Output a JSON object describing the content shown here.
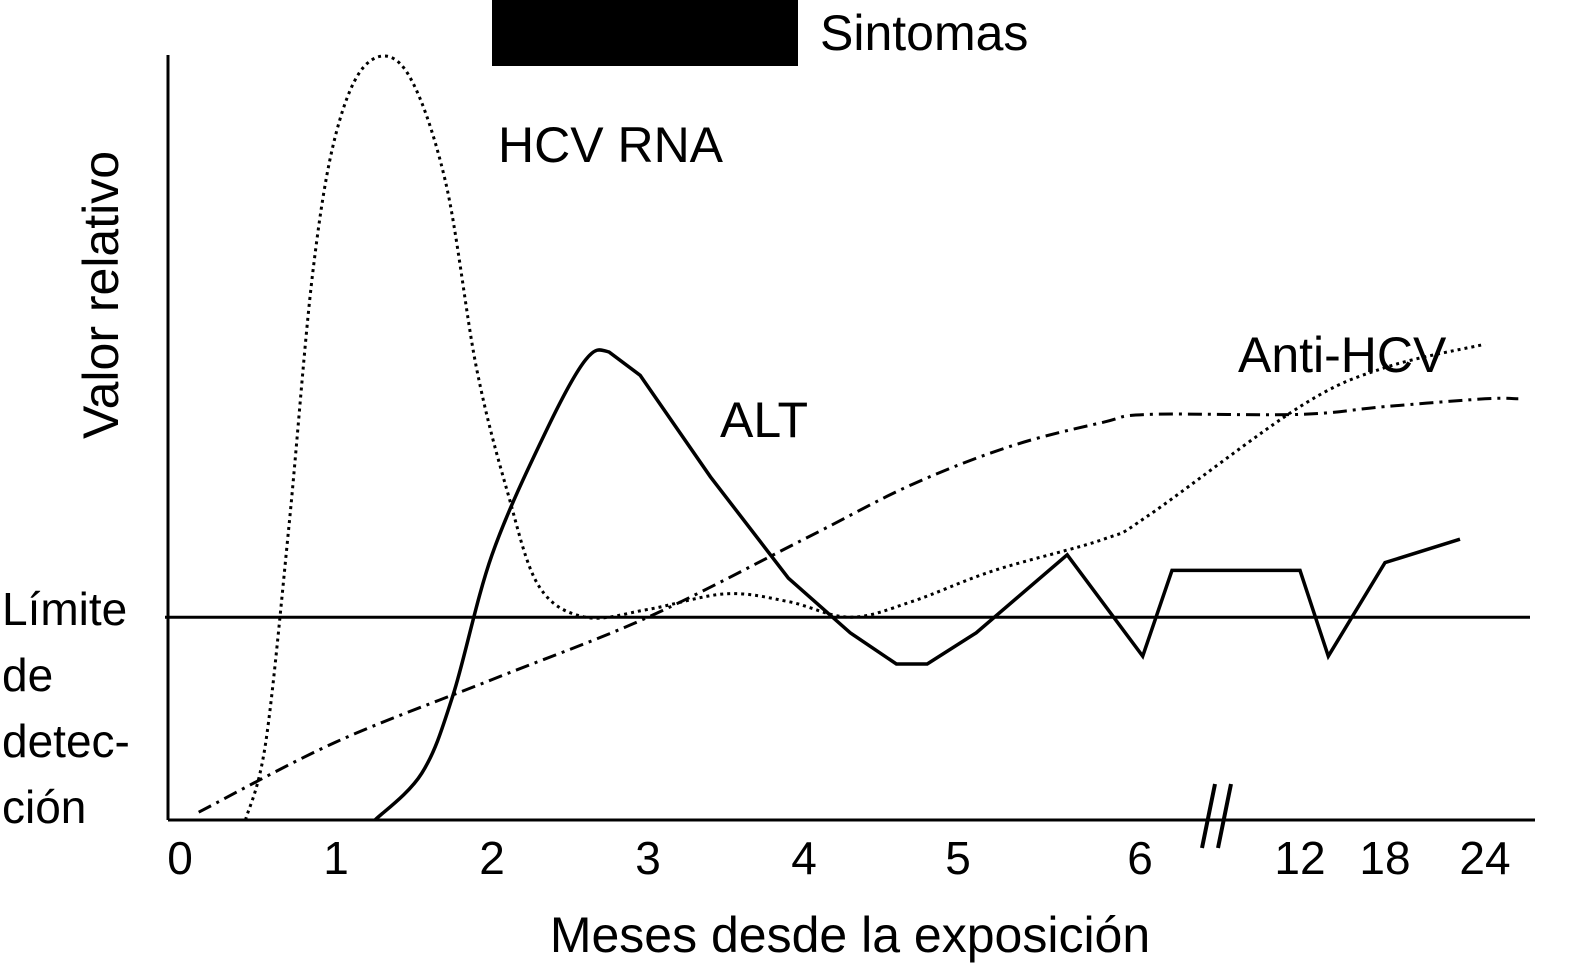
{
  "chart_data": {
    "type": "line",
    "title": "",
    "xlabel": "Meses desde la exposición",
    "ylabel": "Valor relativo",
    "x_tick_labels": [
      "0",
      "1",
      "2",
      "3",
      "4",
      "5",
      "6",
      "12",
      "18",
      "24"
    ],
    "axis_break_marker": "//",
    "y_reference": {
      "label_lines": [
        "Límite",
        "de",
        "detec-",
        "ción"
      ],
      "value": 0.26
    },
    "symptoms": {
      "label": "Sintomas",
      "start": 2.0,
      "end": 4.0
    },
    "series": [
      {
        "name": "HCV RNA",
        "style": "dotted",
        "x": [
          0.42,
          0.55,
          0.7,
          0.85,
          1.0,
          1.2,
          1.45,
          1.7,
          1.9,
          2.1,
          2.3,
          2.6,
          3.0,
          3.5,
          3.9,
          4.3,
          4.7,
          5.2,
          5.8,
          6.3,
          12,
          18,
          24
        ],
        "y": [
          0.0,
          0.1,
          0.38,
          0.7,
          0.88,
          0.97,
          0.96,
          0.82,
          0.58,
          0.42,
          0.3,
          0.26,
          0.27,
          0.29,
          0.28,
          0.26,
          0.28,
          0.32,
          0.36,
          0.39,
          0.53,
          0.58,
          0.61
        ]
      },
      {
        "name": "ALT",
        "style": "solid",
        "x": [
          1.25,
          1.55,
          1.75,
          2.0,
          2.35,
          2.6,
          2.75,
          2.95,
          3.4,
          3.9,
          4.3,
          4.6,
          4.8,
          5.1,
          5.6,
          6.1,
          7.2,
          12.0,
          14.0,
          18.0,
          22.5
        ],
        "y": [
          0.0,
          0.06,
          0.16,
          0.34,
          0.5,
          0.59,
          0.6,
          0.57,
          0.44,
          0.31,
          0.24,
          0.2,
          0.2,
          0.24,
          0.34,
          0.21,
          0.32,
          0.32,
          0.21,
          0.33,
          0.36
        ]
      },
      {
        "name": "Anti-HCV",
        "style": "dash-dot",
        "x": [
          0.12,
          1.0,
          2.0,
          3.0,
          4.0,
          4.7,
          5.3,
          5.8,
          6.3,
          12,
          18,
          24,
          26
        ],
        "y": [
          0.01,
          0.1,
          0.18,
          0.26,
          0.36,
          0.43,
          0.48,
          0.51,
          0.52,
          0.52,
          0.53,
          0.54,
          0.54
        ]
      }
    ]
  }
}
